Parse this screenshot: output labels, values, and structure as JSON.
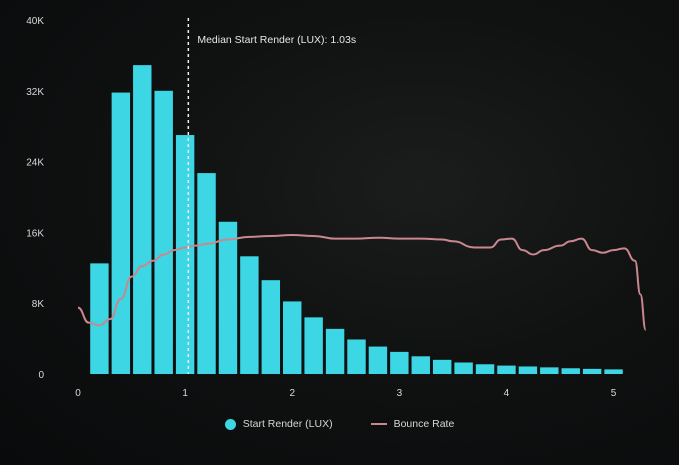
{
  "chart_data": {
    "type": "bar",
    "annotation": "Median Start Render (LUX): 1.03s",
    "median_x": 1.03,
    "x_ticks": [
      "0",
      "1",
      "2",
      "3",
      "4",
      "5"
    ],
    "y_ticks": [
      "0",
      "8K",
      "16K",
      "24K",
      "32K",
      "40K"
    ],
    "xlim": [
      0,
      5.2
    ],
    "ylim": [
      0,
      40000
    ],
    "bin_width": 0.2,
    "bins_x": [
      0.2,
      0.4,
      0.6,
      0.8,
      1.0,
      1.2,
      1.4,
      1.6,
      1.8,
      2.0,
      2.2,
      2.4,
      2.6,
      2.8,
      3.0,
      3.2,
      3.4,
      3.6,
      3.8,
      4.0,
      4.2,
      4.4,
      4.6,
      4.8,
      5.0
    ],
    "series": [
      {
        "name": "Start Render (LUX)",
        "values": [
          12500,
          31800,
          34900,
          32000,
          27000,
          22700,
          17200,
          13300,
          10600,
          8200,
          6400,
          5100,
          3900,
          3100,
          2500,
          2000,
          1600,
          1300,
          1100,
          950,
          850,
          750,
          650,
          580,
          520
        ],
        "color": "#3cd6e4"
      },
      {
        "name": "Bounce Rate",
        "color": "#c9878e",
        "points": [
          [
            0.0,
            7500
          ],
          [
            0.1,
            5800
          ],
          [
            0.2,
            5500
          ],
          [
            0.3,
            6200
          ],
          [
            0.4,
            8500
          ],
          [
            0.5,
            11000
          ],
          [
            0.6,
            12200
          ],
          [
            0.7,
            12800
          ],
          [
            0.8,
            13500
          ],
          [
            0.9,
            14000
          ],
          [
            1.0,
            14300
          ],
          [
            1.1,
            14500
          ],
          [
            1.2,
            14700
          ],
          [
            1.4,
            15200
          ],
          [
            1.6,
            15500
          ],
          [
            1.8,
            15600
          ],
          [
            2.0,
            15700
          ],
          [
            2.2,
            15600
          ],
          [
            2.4,
            15300
          ],
          [
            2.6,
            15300
          ],
          [
            2.8,
            15400
          ],
          [
            3.0,
            15300
          ],
          [
            3.2,
            15300
          ],
          [
            3.4,
            15200
          ],
          [
            3.5,
            15000
          ],
          [
            3.7,
            14300
          ],
          [
            3.85,
            14300
          ],
          [
            3.95,
            15200
          ],
          [
            4.05,
            15300
          ],
          [
            4.15,
            14000
          ],
          [
            4.25,
            13500
          ],
          [
            4.35,
            14000
          ],
          [
            4.5,
            14500
          ],
          [
            4.6,
            15000
          ],
          [
            4.7,
            15300
          ],
          [
            4.8,
            14000
          ],
          [
            4.9,
            13700
          ],
          [
            5.0,
            14000
          ],
          [
            5.1,
            14200
          ],
          [
            5.2,
            12800
          ],
          [
            5.25,
            9000
          ],
          [
            5.3,
            5000
          ]
        ]
      }
    ],
    "legend": [
      {
        "label": "Start Render (LUX)",
        "shape": "dot",
        "color": "#3cd6e4"
      },
      {
        "label": "Bounce Rate",
        "shape": "line",
        "color": "#c9878e"
      }
    ],
    "legend_position": "bottom-center",
    "grid": false
  }
}
